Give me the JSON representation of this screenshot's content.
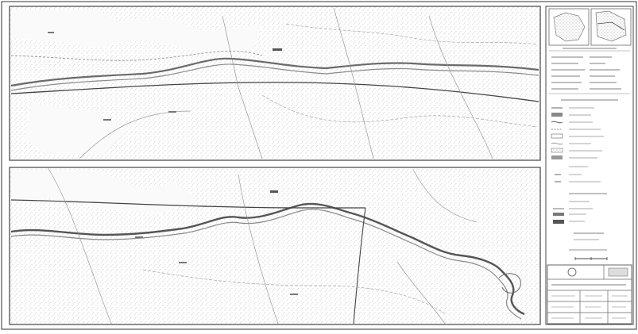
{
  "sheet": {
    "background": "#ffffff",
    "frame_color": "#333333",
    "ink_color": "#555555",
    "light_ink": "#9a9a9a"
  },
  "panels": [
    {
      "name": "top",
      "labels": []
    },
    {
      "name": "bottom",
      "labels": []
    }
  ],
  "sidebar": {
    "sections": [
      {
        "name": "location-maps"
      },
      {
        "name": "project-info-table"
      },
      {
        "name": "legend"
      },
      {
        "name": "scale-and-north"
      },
      {
        "name": "title-block"
      }
    ]
  }
}
